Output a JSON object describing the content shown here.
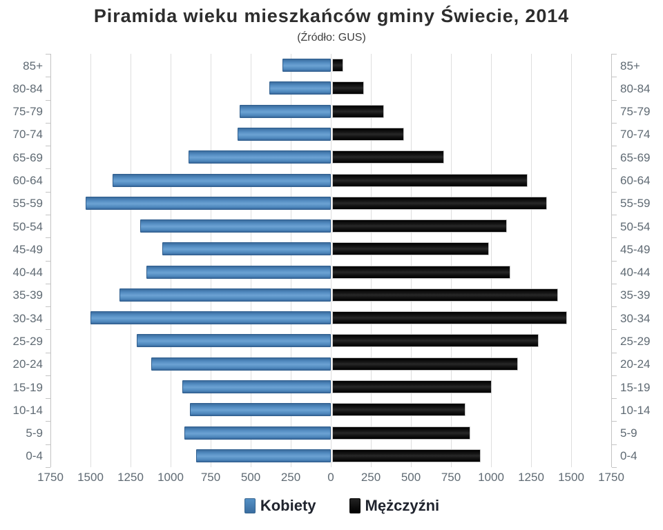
{
  "title": "Piramida wieku mieszkańców gminy Świecie, 2014",
  "subtitle": "(Źródło: GUS)",
  "legend": {
    "female_label": "Kobiety",
    "male_label": "Mężczyźni"
  },
  "colors": {
    "female_bar": "#4a83b8",
    "male_bar": "#161616",
    "gridline": "#dedede",
    "axis_text": "#5f6a73",
    "title_text": "#2d2d2d"
  },
  "chart_data": {
    "type": "bar",
    "subtype": "population-pyramid",
    "title": "Piramida wieku mieszkańców gminy Świecie, 2014",
    "subtitle": "(Źródło: GUS)",
    "categories": [
      "85+",
      "80-84",
      "75-79",
      "70-74",
      "65-69",
      "60-64",
      "55-59",
      "50-54",
      "45-49",
      "40-44",
      "35-39",
      "30-34",
      "25-29",
      "20-24",
      "15-19",
      "10-14",
      "5-9",
      "0-4"
    ],
    "series": [
      {
        "name": "Kobiety",
        "side": "left",
        "values": [
          300,
          385,
          570,
          580,
          890,
          1360,
          1530,
          1190,
          1050,
          1150,
          1320,
          1500,
          1210,
          1120,
          925,
          880,
          915,
          840
        ]
      },
      {
        "name": "Mężczyźni",
        "side": "right",
        "values": [
          70,
          200,
          325,
          450,
          700,
          1220,
          1340,
          1090,
          980,
          1110,
          1410,
          1465,
          1290,
          1160,
          995,
          830,
          860,
          925
        ]
      }
    ],
    "x_tick_labels": [
      "1750",
      "1500",
      "1250",
      "1000",
      "750",
      "500",
      "250",
      "0",
      "250",
      "500",
      "750",
      "1000",
      "1250",
      "1500",
      "1750"
    ],
    "x_tick_interval": 250,
    "xlim_each_side": 1750,
    "grid": true,
    "legend_position": "bottom"
  }
}
